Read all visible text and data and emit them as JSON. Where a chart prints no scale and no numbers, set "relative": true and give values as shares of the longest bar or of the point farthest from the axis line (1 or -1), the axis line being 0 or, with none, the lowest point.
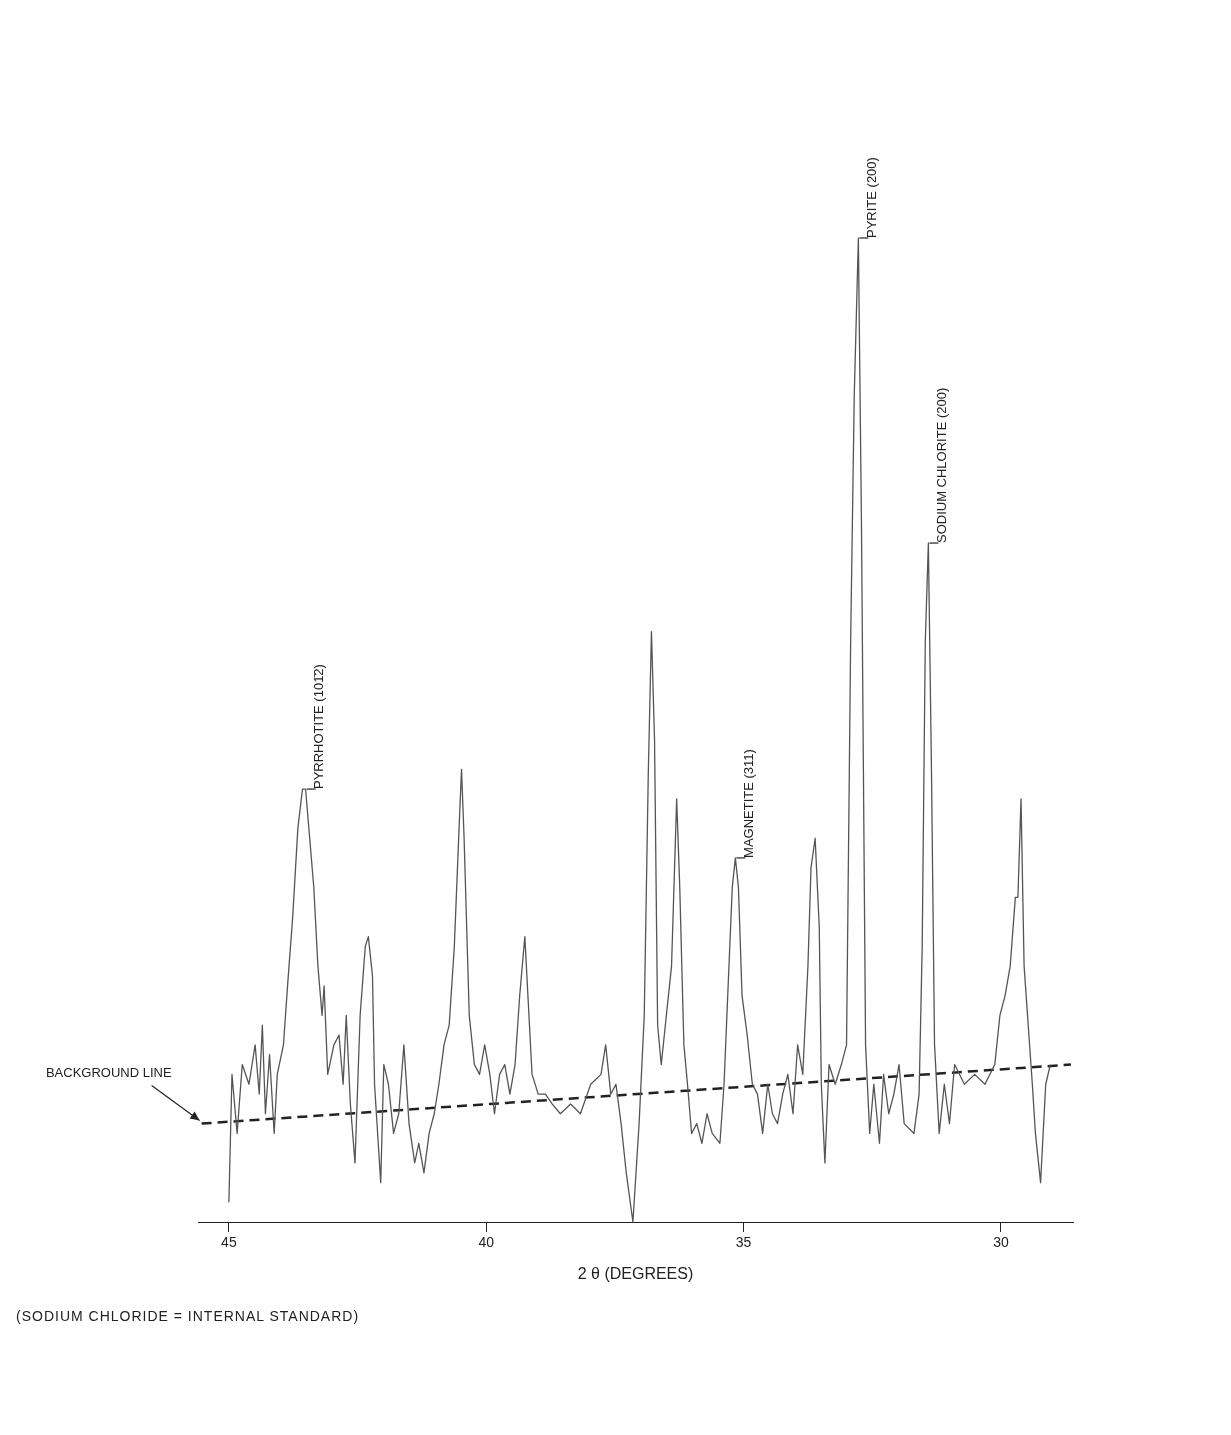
{
  "chart_data": {
    "type": "line",
    "relative": true,
    "xlabel": "2 θ (DEGREES)",
    "xlim": [
      45.6,
      28.6
    ],
    "xticks": [
      45,
      40,
      35,
      30
    ],
    "grid": false,
    "legend": false,
    "tick_labels": "x",
    "marker": "none",
    "annotations": [
      {
        "text": "PYRRHOTITE (101̄2)",
        "x": 43.51,
        "y": 0.44
      },
      {
        "text": "MAGNETITE (311)",
        "x": 35.16,
        "y": 0.37
      },
      {
        "text": "PYRITE (200)",
        "x": 32.77,
        "y": 1.0
      },
      {
        "text": "SODIUM CHLORITE (200)",
        "x": 31.41,
        "y": 0.69
      },
      {
        "text": "BACKGROUND LINE",
        "x": 45.53,
        "y": 0.1
      },
      "(SODIUM CHLORIDE = INTERNAL STANDARD)"
    ],
    "series": [
      {
        "type": "line",
        "color": "#555555",
        "line_style": "solid",
        "x": [
          45.0,
          44.94,
          44.84,
          44.74,
          44.61,
          44.49,
          44.41,
          44.35,
          44.29,
          44.21,
          44.12,
          44.06,
          43.94,
          43.86,
          43.76,
          43.66,
          43.57,
          43.51,
          43.43,
          43.35,
          43.27,
          43.19,
          43.15,
          43.08,
          42.96,
          42.86,
          42.78,
          42.72,
          42.64,
          42.55,
          42.45,
          42.35,
          42.29,
          42.21,
          42.17,
          42.05,
          41.99,
          41.9,
          41.8,
          41.7,
          41.6,
          41.5,
          41.39,
          41.31,
          41.21,
          41.11,
          41.01,
          40.92,
          40.82,
          40.72,
          40.62,
          40.52,
          40.48,
          40.43,
          40.33,
          40.23,
          40.13,
          40.03,
          39.93,
          39.84,
          39.74,
          39.64,
          39.54,
          39.44,
          39.35,
          39.25,
          39.19,
          39.11,
          38.99,
          38.85,
          38.72,
          38.56,
          38.36,
          38.17,
          37.97,
          37.77,
          37.68,
          37.58,
          37.48,
          37.38,
          37.28,
          37.15,
          37.03,
          36.93,
          36.85,
          36.79,
          36.73,
          36.67,
          36.6,
          36.5,
          36.4,
          36.3,
          36.24,
          36.16,
          36.09,
          36.01,
          35.91,
          35.81,
          35.71,
          35.61,
          35.46,
          35.38,
          35.3,
          35.22,
          35.16,
          35.1,
          35.03,
          34.93,
          34.83,
          34.73,
          34.63,
          34.53,
          34.44,
          34.34,
          34.24,
          34.14,
          34.04,
          33.95,
          33.85,
          33.75,
          33.69,
          33.61,
          33.53,
          33.49,
          33.42,
          33.34,
          33.22,
          33.1,
          33.0,
          32.92,
          32.85,
          32.77,
          32.71,
          32.63,
          32.55,
          32.47,
          32.36,
          32.28,
          32.18,
          32.08,
          31.98,
          31.88,
          31.69,
          31.59,
          31.53,
          31.47,
          31.41,
          31.35,
          31.29,
          31.2,
          31.1,
          31.0,
          30.9,
          30.71,
          30.51,
          30.31,
          30.12,
          30.02,
          29.92,
          29.82,
          29.72,
          29.67,
          29.61,
          29.55,
          29.47,
          29.39,
          29.33,
          29.23,
          29.13,
          29.04
        ],
        "values": [
          0.02,
          0.15,
          0.09,
          0.16,
          0.14,
          0.18,
          0.13,
          0.2,
          0.11,
          0.17,
          0.09,
          0.15,
          0.18,
          0.24,
          0.31,
          0.4,
          0.44,
          0.44,
          0.39,
          0.34,
          0.26,
          0.21,
          0.24,
          0.15,
          0.18,
          0.19,
          0.14,
          0.21,
          0.12,
          0.06,
          0.21,
          0.28,
          0.29,
          0.25,
          0.14,
          0.04,
          0.16,
          0.14,
          0.09,
          0.11,
          0.18,
          0.1,
          0.06,
          0.08,
          0.05,
          0.09,
          0.11,
          0.14,
          0.18,
          0.2,
          0.28,
          0.41,
          0.46,
          0.39,
          0.21,
          0.16,
          0.15,
          0.18,
          0.15,
          0.11,
          0.15,
          0.16,
          0.13,
          0.16,
          0.23,
          0.29,
          0.23,
          0.15,
          0.13,
          0.13,
          0.12,
          0.11,
          0.12,
          0.11,
          0.14,
          0.15,
          0.18,
          0.13,
          0.14,
          0.1,
          0.05,
          0.0,
          0.1,
          0.21,
          0.46,
          0.6,
          0.49,
          0.2,
          0.16,
          0.21,
          0.26,
          0.43,
          0.34,
          0.18,
          0.14,
          0.09,
          0.1,
          0.08,
          0.11,
          0.09,
          0.08,
          0.14,
          0.24,
          0.34,
          0.37,
          0.34,
          0.23,
          0.19,
          0.14,
          0.13,
          0.09,
          0.14,
          0.11,
          0.1,
          0.13,
          0.15,
          0.11,
          0.18,
          0.15,
          0.26,
          0.36,
          0.39,
          0.3,
          0.14,
          0.06,
          0.16,
          0.14,
          0.16,
          0.18,
          0.59,
          0.84,
          1.0,
          0.71,
          0.18,
          0.09,
          0.14,
          0.08,
          0.15,
          0.11,
          0.13,
          0.16,
          0.1,
          0.09,
          0.13,
          0.28,
          0.59,
          0.69,
          0.46,
          0.18,
          0.09,
          0.14,
          0.1,
          0.16,
          0.14,
          0.15,
          0.14,
          0.16,
          0.21,
          0.23,
          0.26,
          0.33,
          0.33,
          0.43,
          0.26,
          0.2,
          0.14,
          0.09,
          0.04,
          0.14,
          0.16
        ]
      },
      {
        "type": "line",
        "color": "#222222",
        "line_style": "dashed",
        "x": [
          45.53,
          28.64
        ],
        "values": [
          0.1,
          0.16
        ]
      }
    ]
  }
}
